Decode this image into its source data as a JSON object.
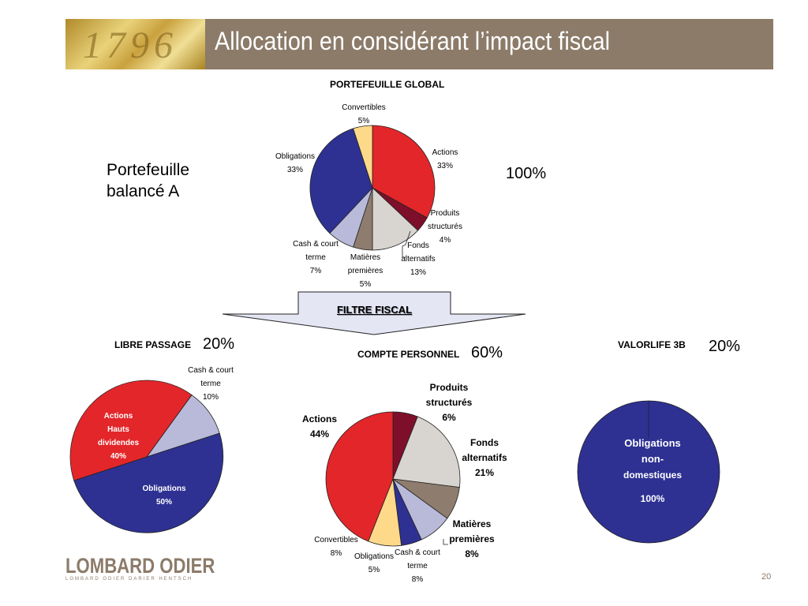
{
  "header": {
    "year_watermark": "1796",
    "title": "Allocation en considérant l’impact fiscal"
  },
  "side_label": {
    "line1": "Portefeuille",
    "line2": "balancé A"
  },
  "filter_label": "FILTRE FISCAL",
  "colors": {
    "actions": "#e3262a",
    "produits": "#7d0f2a",
    "fonds": "#d8d4cf",
    "matieres": "#8e7d6e",
    "cash": "#b9b9d9",
    "obligations": "#2e3192",
    "convertibles": "#ffd98a"
  },
  "chart_data": [
    {
      "id": "global",
      "type": "pie",
      "title": "PORTEFEUILLE GLOBAL",
      "share": "100%",
      "slices": [
        {
          "label_lines": [
            "Actions"
          ],
          "value": 33,
          "value_label": "33%",
          "color_key": "actions"
        },
        {
          "label_lines": [
            "Produits",
            "structurés"
          ],
          "value": 4,
          "value_label": "4%",
          "color_key": "produits"
        },
        {
          "label_lines": [
            "Fonds",
            "alternatifs"
          ],
          "value": 13,
          "value_label": "13%",
          "color_key": "fonds"
        },
        {
          "label_lines": [
            "Matières",
            "premières"
          ],
          "value": 5,
          "value_label": "5%",
          "color_key": "matieres"
        },
        {
          "label_lines": [
            "Cash & court",
            "terme"
          ],
          "value": 7,
          "value_label": "7%",
          "color_key": "cash"
        },
        {
          "label_lines": [
            "Obligations"
          ],
          "value": 33,
          "value_label": "33%",
          "color_key": "obligations"
        },
        {
          "label_lines": [
            "Convertibles"
          ],
          "value": 5,
          "value_label": "5%",
          "color_key": "convertibles"
        }
      ]
    },
    {
      "id": "libre",
      "type": "pie",
      "title": "LIBRE PASSAGE",
      "share": "20%",
      "slices": [
        {
          "label_lines": [
            "Cash & court",
            "terme"
          ],
          "value": 10,
          "value_label": "10%",
          "color_key": "cash"
        },
        {
          "label_lines": [
            "Obligations"
          ],
          "value": 50,
          "value_label": "50%",
          "color_key": "obligations"
        },
        {
          "label_lines": [
            "Actions",
            "Hauts",
            "dividendes"
          ],
          "value": 40,
          "value_label": "40%",
          "color_key": "actions"
        }
      ]
    },
    {
      "id": "compte",
      "type": "pie",
      "title": "COMPTE PERSONNEL",
      "share": "60%",
      "slices": [
        {
          "label_lines": [
            "Produits",
            "structurés"
          ],
          "value": 6,
          "value_label": "6%",
          "color_key": "produits"
        },
        {
          "label_lines": [
            "Fonds",
            "alternatifs"
          ],
          "value": 21,
          "value_label": "21%",
          "color_key": "fonds"
        },
        {
          "label_lines": [
            "Matières",
            "premières"
          ],
          "value": 8,
          "value_label": "8%",
          "color_key": "matieres"
        },
        {
          "label_lines": [
            "Cash & court",
            "terme"
          ],
          "value": 8,
          "value_label": "8%",
          "color_key": "cash"
        },
        {
          "label_lines": [
            "Obligations"
          ],
          "value": 5,
          "value_label": "5%",
          "color_key": "obligations"
        },
        {
          "label_lines": [
            "Convertibles"
          ],
          "value": 8,
          "value_label": "8%",
          "color_key": "convertibles"
        },
        {
          "label_lines": [
            "Actions"
          ],
          "value": 44,
          "value_label": "44%",
          "color_key": "actions"
        }
      ]
    },
    {
      "id": "valor",
      "type": "pie",
      "title": "VALORLIFE 3B",
      "share": "20%",
      "slices": [
        {
          "label_lines": [
            "Obligations",
            "non-",
            "domestiques"
          ],
          "value": 100,
          "value_label": "100%",
          "color_key": "obligations"
        }
      ]
    }
  ],
  "footer": {
    "logo": "LOMBARD ODIER",
    "logo_sub": "LOMBARD ODIER DARIER HENTSCH",
    "page_number": "20"
  }
}
